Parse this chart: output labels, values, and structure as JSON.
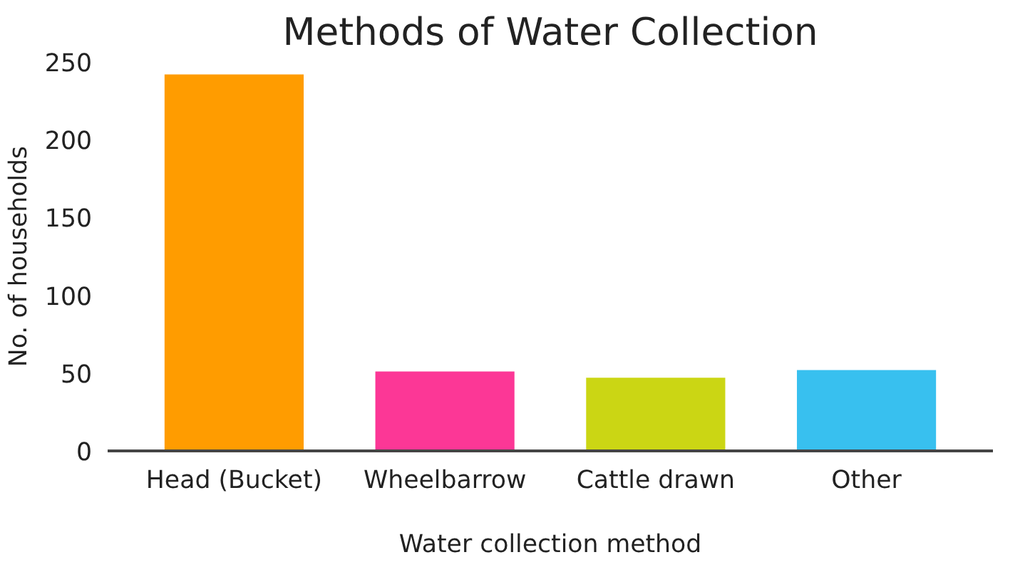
{
  "chart_data": {
    "type": "bar",
    "title": "Methods of Water Collection",
    "xlabel": "Water collection method",
    "ylabel": "No. of households",
    "categories": [
      "Head (Bucket)",
      "Wheelbarrow",
      "Cattle drawn",
      "Other"
    ],
    "values": [
      242,
      51,
      47,
      52
    ],
    "colors": [
      "#ff9c00",
      "#fc3796",
      "#cbd614",
      "#38c0ef"
    ],
    "ylim": [
      0,
      250
    ],
    "yticks": [
      0,
      50,
      100,
      150,
      200,
      250
    ],
    "grid": false
  }
}
